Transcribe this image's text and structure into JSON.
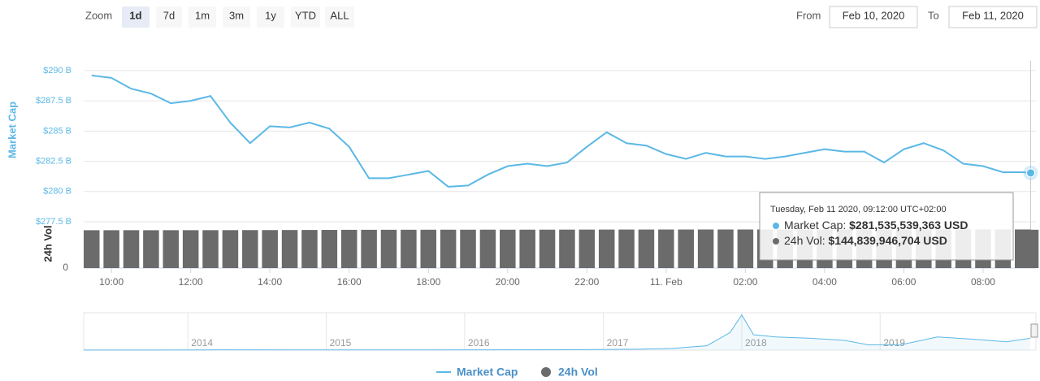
{
  "toolbar": {
    "zoom_label": "Zoom",
    "buttons": [
      "1d",
      "7d",
      "1m",
      "3m",
      "1y",
      "YTD",
      "ALL"
    ],
    "active": 0,
    "from_label": "From",
    "from": "Feb 10, 2020",
    "to_label": "To",
    "to": "Feb 11, 2020"
  },
  "chart_data": {
    "type": "line",
    "x": [
      "2020-02-10T09:30",
      "2020-02-10T10:00",
      "2020-02-10T10:30",
      "2020-02-10T11:00",
      "2020-02-10T11:30",
      "2020-02-10T12:00",
      "2020-02-10T12:30",
      "2020-02-10T13:00",
      "2020-02-10T13:30",
      "2020-02-10T14:00",
      "2020-02-10T14:30",
      "2020-02-10T15:00",
      "2020-02-10T15:30",
      "2020-02-10T16:00",
      "2020-02-10T16:30",
      "2020-02-10T17:00",
      "2020-02-10T17:30",
      "2020-02-10T18:00",
      "2020-02-10T18:30",
      "2020-02-10T19:00",
      "2020-02-10T19:30",
      "2020-02-10T20:00",
      "2020-02-10T20:30",
      "2020-02-10T21:00",
      "2020-02-10T21:30",
      "2020-02-10T22:00",
      "2020-02-10T22:30",
      "2020-02-10T23:00",
      "2020-02-10T23:30",
      "2020-02-11T00:00",
      "2020-02-11T00:30",
      "2020-02-11T01:00",
      "2020-02-11T01:30",
      "2020-02-11T02:00",
      "2020-02-11T02:30",
      "2020-02-11T03:00",
      "2020-02-11T03:30",
      "2020-02-11T04:00",
      "2020-02-11T04:30",
      "2020-02-11T05:00",
      "2020-02-11T05:30",
      "2020-02-11T06:00",
      "2020-02-11T06:30",
      "2020-02-11T07:00",
      "2020-02-11T07:30",
      "2020-02-11T08:00",
      "2020-02-11T08:30",
      "2020-02-11T09:00",
      "2020-02-11T09:12"
    ],
    "xlim": [
      "2020-02-10T09:18",
      "2020-02-11T09:20"
    ],
    "xticks": [
      {
        "value": "2020-02-10T10:00",
        "label": "10:00"
      },
      {
        "value": "2020-02-10T12:00",
        "label": "12:00"
      },
      {
        "value": "2020-02-10T14:00",
        "label": "14:00"
      },
      {
        "value": "2020-02-10T16:00",
        "label": "16:00"
      },
      {
        "value": "2020-02-10T18:00",
        "label": "18:00"
      },
      {
        "value": "2020-02-10T20:00",
        "label": "20:00"
      },
      {
        "value": "2020-02-10T22:00",
        "label": "22:00"
      },
      {
        "value": "2020-02-11T00:00",
        "label": "11. Feb"
      },
      {
        "value": "2020-02-11T02:00",
        "label": "02:00"
      },
      {
        "value": "2020-02-11T04:00",
        "label": "04:00"
      },
      {
        "value": "2020-02-11T06:00",
        "label": "06:00"
      },
      {
        "value": "2020-02-11T08:00",
        "label": "08:00"
      }
    ],
    "series": [
      {
        "name": "Market Cap",
        "color": "#5bb8e6",
        "values": [
          289.6,
          289.4,
          288.5,
          288.1,
          287.3,
          287.5,
          287.9,
          285.7,
          284.0,
          285.4,
          285.3,
          285.7,
          285.2,
          283.7,
          281.1,
          281.1,
          281.4,
          281.7,
          280.4,
          280.5,
          281.4,
          282.1,
          282.3,
          282.1,
          282.4,
          283.7,
          284.9,
          284.0,
          283.8,
          283.1,
          282.7,
          283.2,
          282.9,
          282.9,
          282.7,
          282.9,
          283.2,
          283.5,
          283.3,
          283.3,
          282.4,
          283.5,
          284.0,
          283.4,
          282.3,
          282.1,
          281.6,
          281.6,
          281.54
        ]
      },
      {
        "name": "24h Vol",
        "type": "column",
        "axis": "y2",
        "color": "#6b6b6b",
        "values": [
          143.1,
          143.1,
          143.2,
          143.1,
          143.2,
          143.2,
          143.3,
          143.4,
          143.5,
          143.6,
          143.8,
          144.0,
          144.2,
          144.5,
          144.6,
          144.7,
          144.8,
          144.9,
          145.0,
          145.0,
          145.1,
          145.0,
          145.1,
          145.2,
          145.3,
          145.4,
          145.5,
          145.6,
          145.6,
          145.7,
          145.7,
          145.8,
          145.8,
          145.8,
          145.9,
          145.9,
          145.9,
          146.0,
          146.0,
          146.0,
          146.0,
          146.0,
          146.0,
          146.0,
          146.0,
          146.0,
          146.0,
          145.9,
          144.84
        ]
      }
    ],
    "ylabel": "Market Cap",
    "ylim": [
      277.5,
      290.8
    ],
    "yticks": [
      {
        "value": 277.5,
        "label": "$277.5 B"
      },
      {
        "value": 280,
        "label": "$280 B"
      },
      {
        "value": 282.5,
        "label": "$282.5 B"
      },
      {
        "value": 285,
        "label": "$285 B"
      },
      {
        "value": 287.5,
        "label": "$287.5 B"
      },
      {
        "value": 290,
        "label": "$290 B"
      }
    ],
    "y2label": "24h Vol",
    "y2lim": [
      0,
      175
    ],
    "y2ticks": [
      0
    ],
    "grid": true,
    "legend": "bottom",
    "tooltip": {
      "header": "Tuesday, Feb 11 2020, 09:12:00 UTC+02:00",
      "rows": [
        {
          "name": "Market Cap:",
          "value": "$281,535,539,363 USD"
        },
        {
          "name": "24h Vol:",
          "value": "$144,839,946,704 USD"
        }
      ]
    },
    "navigator": {
      "x": [
        "2013-04",
        "2013-10",
        "2014-04",
        "2014-10",
        "2015-04",
        "2015-10",
        "2016-04",
        "2016-10",
        "2017-04",
        "2017-07",
        "2017-10",
        "2017-12",
        "2018-01",
        "2018-02",
        "2018-04",
        "2018-07",
        "2018-10",
        "2018-12",
        "2019-03",
        "2019-06",
        "2019-09",
        "2019-12",
        "2020-02"
      ],
      "values": [
        1.5,
        2,
        6,
        5,
        3.5,
        4,
        6,
        10,
        20,
        40,
        100,
        400,
        800,
        350,
        300,
        270,
        220,
        120,
        130,
        300,
        250,
        190,
        270
      ],
      "xlim": [
        "2013-04",
        "2020-02"
      ],
      "ylim": [
        0,
        850
      ],
      "xticks": [
        {
          "value": "2014-01",
          "label": "2014"
        },
        {
          "value": "2015-01",
          "label": "2015"
        },
        {
          "value": "2016-01",
          "label": "2016"
        },
        {
          "value": "2017-01",
          "label": "2017"
        },
        {
          "value": "2018-01",
          "label": "2018"
        },
        {
          "value": "2019-01",
          "label": "2019"
        }
      ]
    }
  }
}
